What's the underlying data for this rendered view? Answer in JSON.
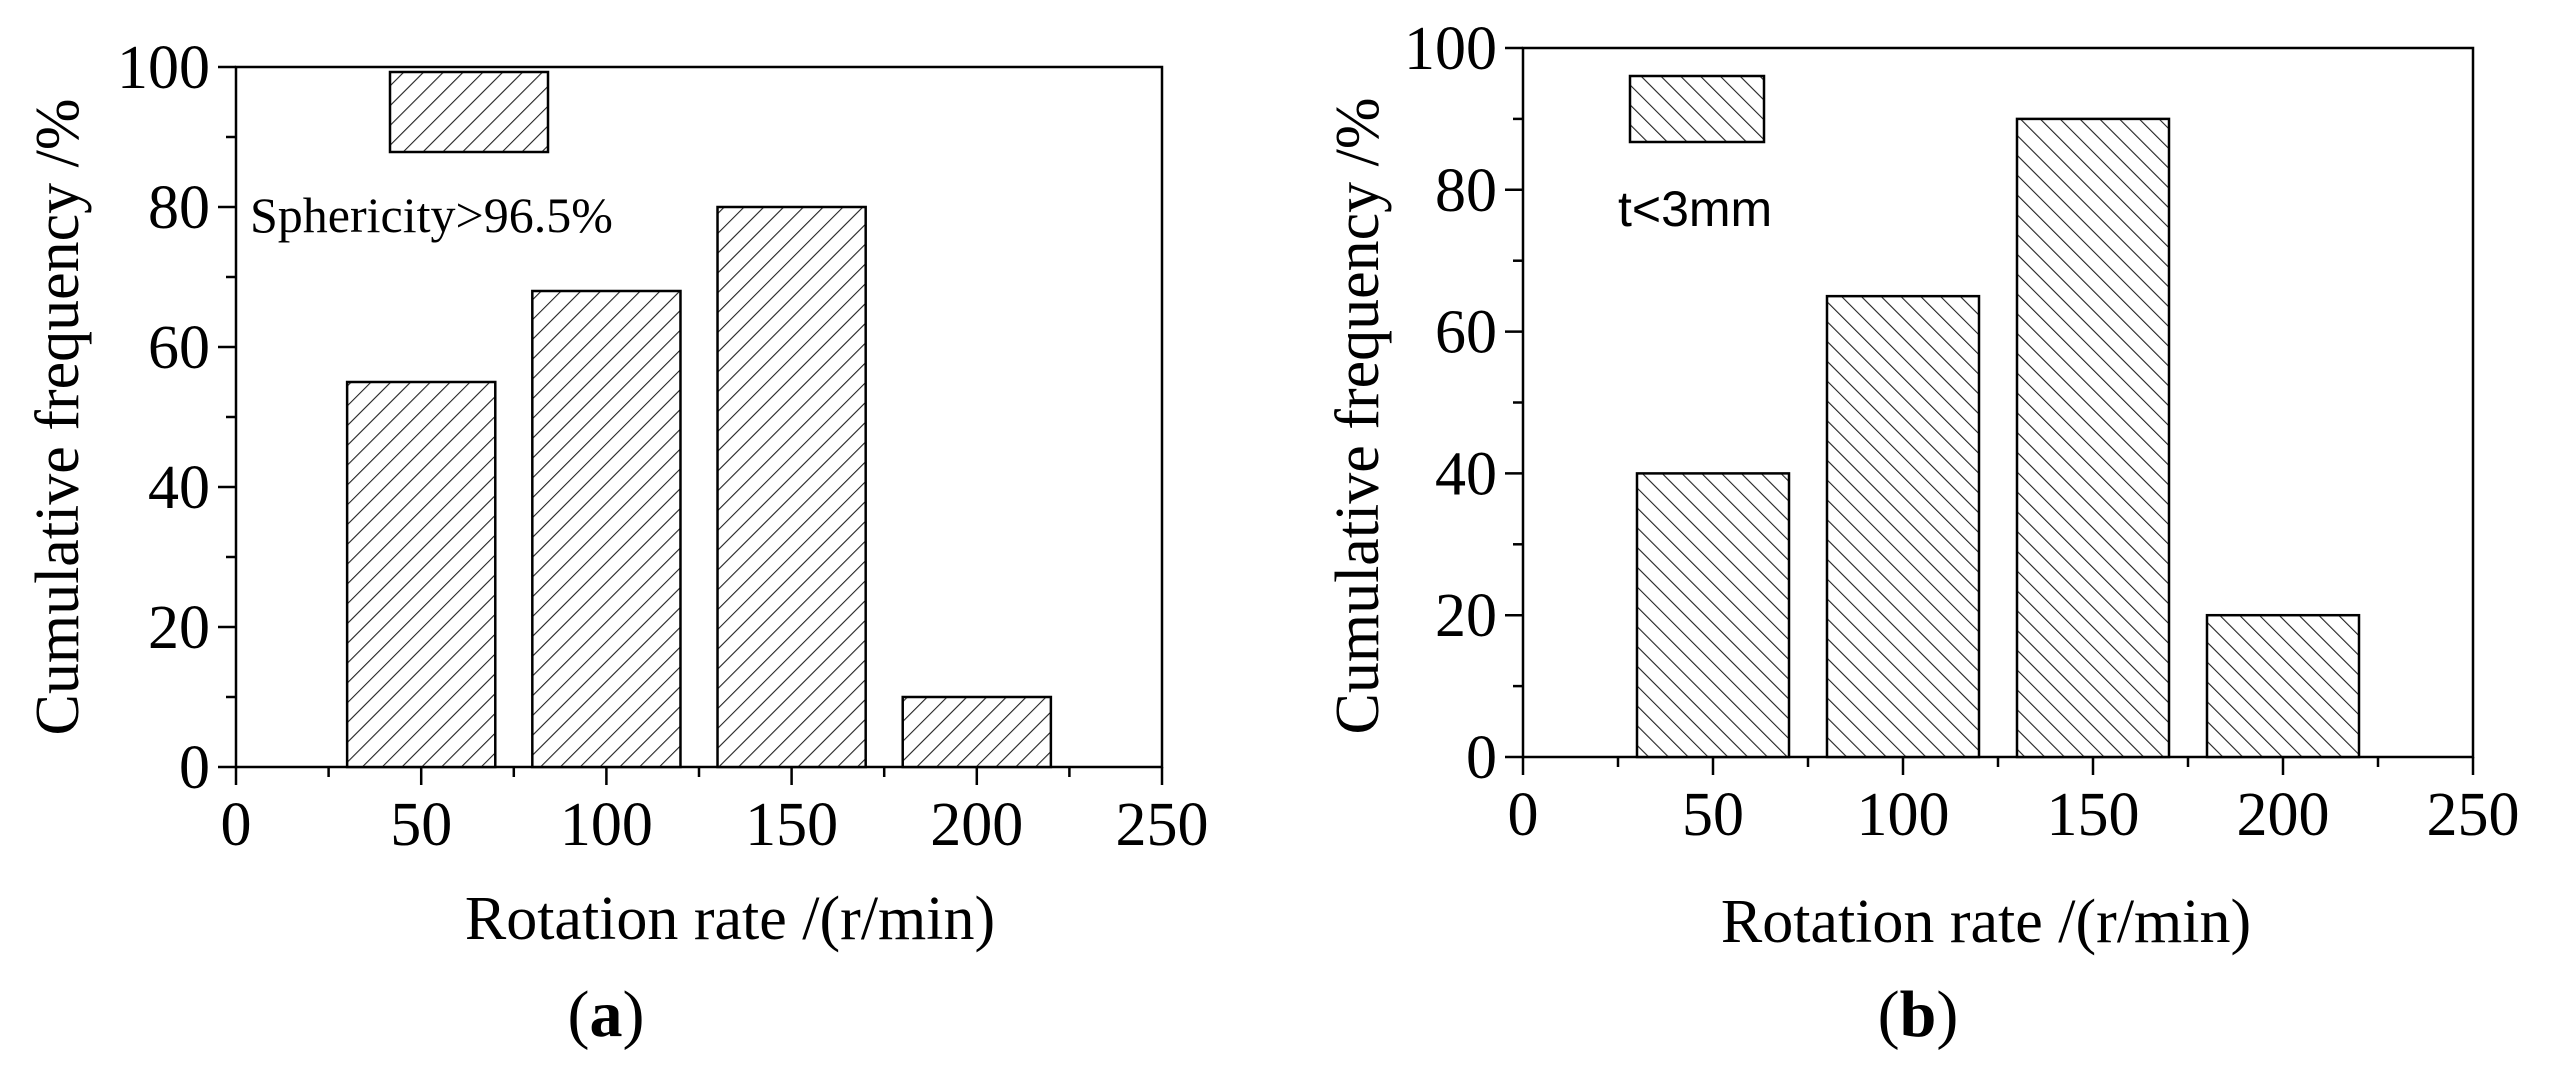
{
  "chart_data": [
    {
      "id": "a",
      "type": "bar",
      "panel_label": "a",
      "x": [
        50,
        100,
        150,
        200
      ],
      "values": [
        55,
        68,
        80,
        10
      ],
      "xlabel": "Rotation rate /(r/min)",
      "ylabel": "Cumulative frequency /%",
      "xlim": [
        0,
        250
      ],
      "ylim": [
        0,
        100
      ],
      "xticks": [
        0,
        50,
        100,
        150,
        200,
        250
      ],
      "yticks": [
        0,
        20,
        40,
        60,
        80,
        100
      ],
      "xtick_labels": [
        "0",
        "50",
        "100",
        "150",
        "200",
        "250"
      ],
      "ytick_labels": [
        "0",
        "20",
        "40",
        "60",
        "80",
        "100"
      ],
      "bar_width": 40,
      "hatch": "forward-diagonal",
      "legend": {
        "label": "Sphericity>96.5%",
        "placement": "top-left"
      },
      "grid": false
    },
    {
      "id": "b",
      "type": "bar",
      "panel_label": "b",
      "x": [
        50,
        100,
        150,
        200
      ],
      "values": [
        40,
        65,
        90,
        20
      ],
      "xlabel": "Rotation rate /(r/min)",
      "ylabel": "Cumulative frequency /%",
      "xlim": [
        0,
        250
      ],
      "ylim": [
        0,
        100
      ],
      "xticks": [
        0,
        50,
        100,
        150,
        200,
        250
      ],
      "yticks": [
        0,
        20,
        40,
        60,
        80,
        100
      ],
      "xtick_labels": [
        "0",
        "50",
        "100",
        "150",
        "200",
        "250"
      ],
      "ytick_labels": [
        "0",
        "20",
        "40",
        "60",
        "80",
        "100"
      ],
      "bar_width": 40,
      "hatch": "back-diagonal",
      "legend": {
        "label": "t<3mm",
        "placement": "top-left"
      },
      "grid": false
    }
  ]
}
